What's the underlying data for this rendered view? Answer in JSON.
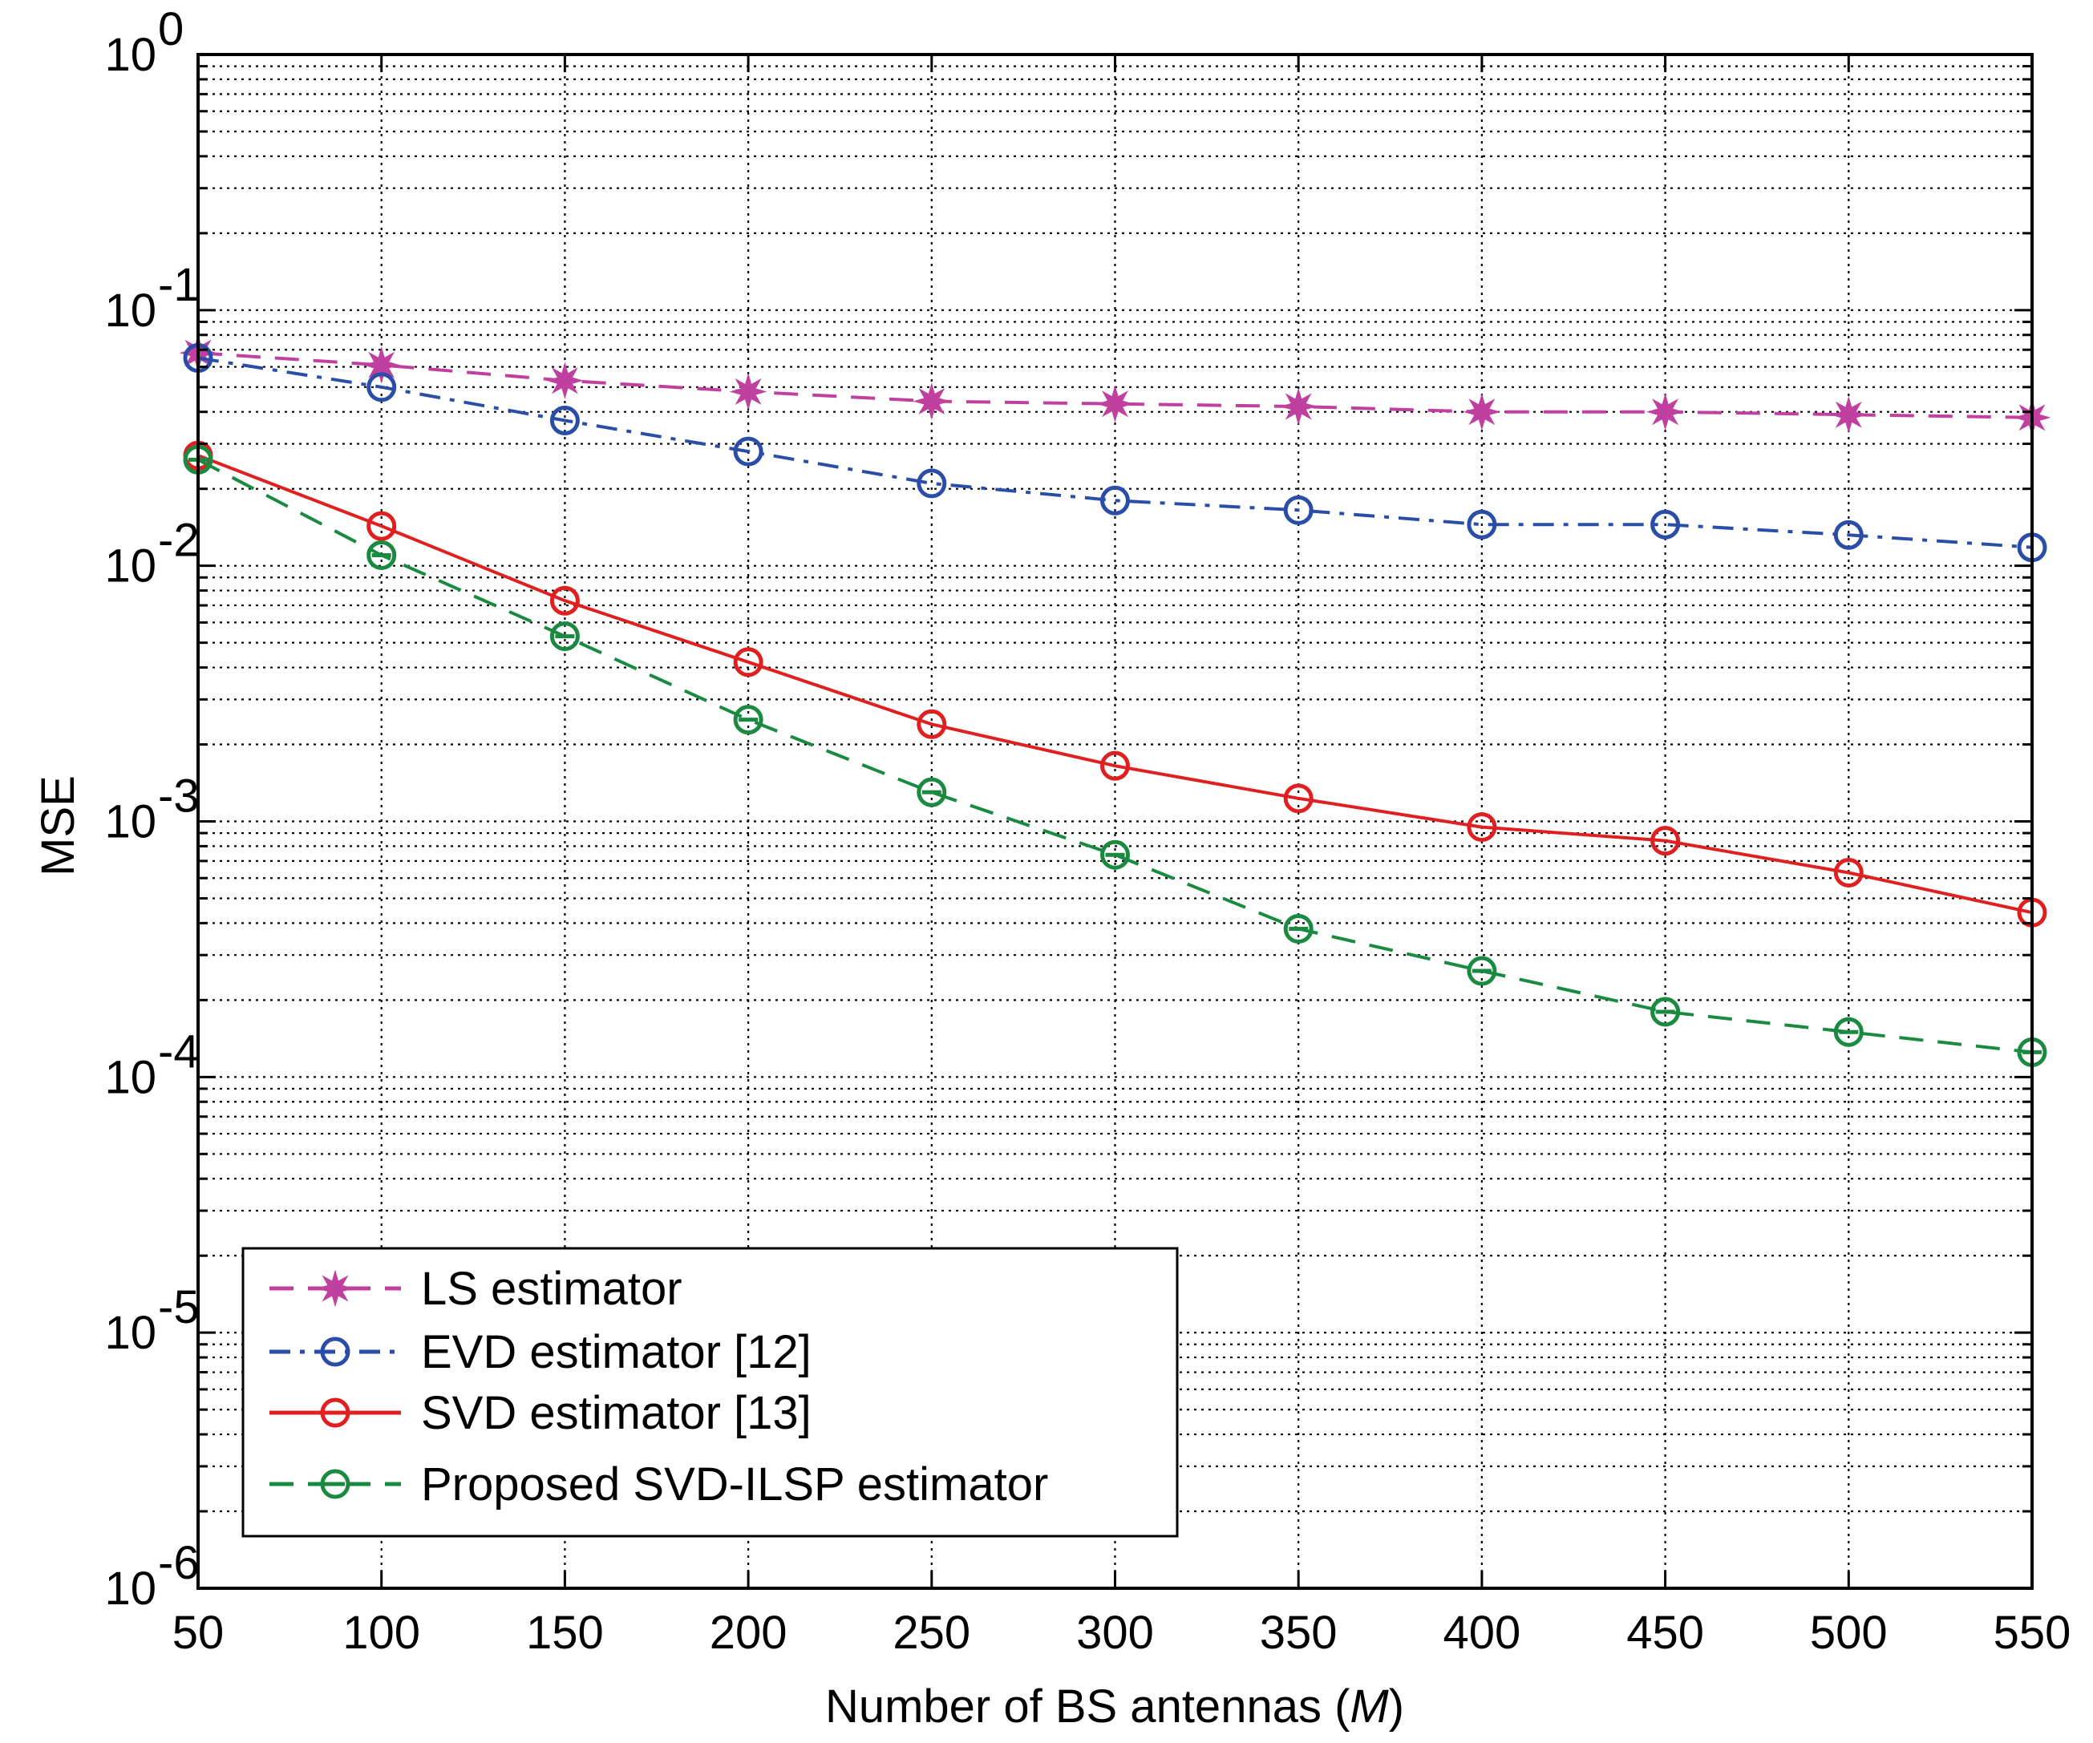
{
  "chart_data": {
    "type": "line",
    "title": "",
    "xlabel_prefix": "Number of BS antennas (",
    "xlabel_var": "M",
    "xlabel_suffix": ")",
    "ylabel": "MSE",
    "xlim": [
      50,
      550
    ],
    "ylim": [
      1e-06,
      1
    ],
    "yscale": "log",
    "grid": true,
    "legend_position": "bottom-left",
    "x_ticks": [
      "50",
      "100",
      "150",
      "200",
      "250",
      "300",
      "350",
      "400",
      "450",
      "500",
      "550"
    ],
    "y_ticks": [
      {
        "base": "10",
        "exp": "0"
      },
      {
        "base": "10",
        "exp": "-1"
      },
      {
        "base": "10",
        "exp": "-2"
      },
      {
        "base": "10",
        "exp": "-3"
      },
      {
        "base": "10",
        "exp": "-4"
      },
      {
        "base": "10",
        "exp": "-5"
      },
      {
        "base": "10",
        "exp": "-6"
      }
    ],
    "x": [
      50,
      100,
      150,
      200,
      250,
      300,
      350,
      400,
      450,
      500,
      550
    ],
    "series": [
      {
        "name": "LS estimator",
        "color": "#c040a0",
        "line_style": "dashed",
        "marker": "star",
        "values": [
          0.068,
          0.061,
          0.053,
          0.048,
          0.044,
          0.043,
          0.042,
          0.04,
          0.04,
          0.039,
          0.038
        ]
      },
      {
        "name": "EVD estimator [12]",
        "color": "#2a4ea8",
        "line_style": "dashdot",
        "marker": "circle",
        "values": [
          0.065,
          0.05,
          0.037,
          0.028,
          0.021,
          0.018,
          0.0165,
          0.0145,
          0.0145,
          0.0132,
          0.0118
        ]
      },
      {
        "name": "SVD estimator [13]",
        "color": "#e02020",
        "line_style": "solid",
        "marker": "circle",
        "values": [
          0.027,
          0.0143,
          0.0073,
          0.0042,
          0.0024,
          0.00165,
          0.00123,
          0.00095,
          0.00084,
          0.00063,
          0.00044
        ]
      },
      {
        "name": "Proposed SVD-ILSP estimator",
        "color": "#1a8a40",
        "line_style": "dashed",
        "marker": "circle-bar",
        "values": [
          0.026,
          0.011,
          0.0053,
          0.0025,
          0.0013,
          0.00074,
          0.00038,
          0.00026,
          0.00018,
          0.00015,
          0.000125
        ]
      }
    ]
  }
}
